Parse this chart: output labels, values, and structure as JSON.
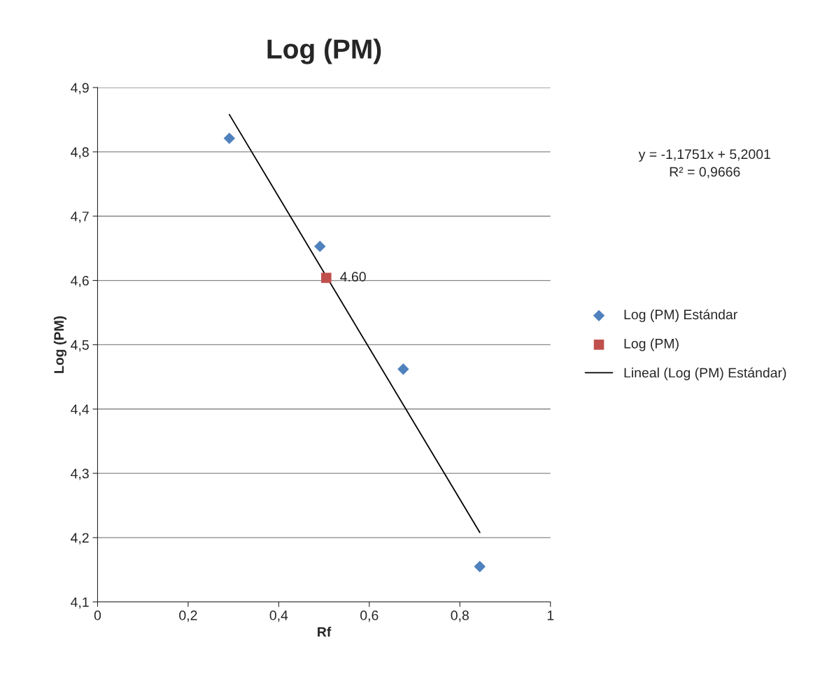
{
  "chart_data": {
    "type": "scatter",
    "title": "Log (PM)",
    "xlabel": "Rf",
    "ylabel": "Log (PM)",
    "xlim": [
      0,
      1
    ],
    "xticks": [
      {
        "value": 0,
        "label": "0"
      },
      {
        "value": 0.2,
        "label": "0,2"
      },
      {
        "value": 0.4,
        "label": "0,4"
      },
      {
        "value": 0.6,
        "label": "0,6"
      },
      {
        "value": 0.8,
        "label": "0,8"
      },
      {
        "value": 1,
        "label": "1"
      }
    ],
    "ylim": [
      4.1,
      4.9
    ],
    "yticks": [
      {
        "value": 4.1,
        "label": "4,1"
      },
      {
        "value": 4.2,
        "label": "4,2"
      },
      {
        "value": 4.3,
        "label": "4,3"
      },
      {
        "value": 4.4,
        "label": "4,4"
      },
      {
        "value": 4.5,
        "label": "4,5"
      },
      {
        "value": 4.6,
        "label": "4,6"
      },
      {
        "value": 4.7,
        "label": "4,7"
      },
      {
        "value": 4.8,
        "label": "4,8"
      },
      {
        "value": 4.9,
        "label": "4,9"
      }
    ],
    "grid": "y",
    "legend": "right",
    "series": [
      {
        "name": "Log (PM) Estándar",
        "marker": "diamond",
        "color": "#4f81bd",
        "x": [
          0.291,
          0.491,
          0.675,
          0.844
        ],
        "values": [
          4.821,
          4.653,
          4.462,
          4.155
        ]
      },
      {
        "name": "Log (PM)",
        "marker": "square",
        "color": "#c0504d",
        "x": [
          0.505
        ],
        "values": [
          4.604
        ],
        "value_labels": [
          "4.60"
        ]
      },
      {
        "name": "Lineal (Log (PM) Estándar)",
        "type": "line",
        "marker": "none",
        "color": "#000000",
        "x": [
          0.291,
          0.844
        ],
        "values": [
          4.858,
          4.208
        ]
      }
    ],
    "annotations": [
      "y = -1,1751x + 5,2001\nR² = 0,9666"
    ]
  }
}
